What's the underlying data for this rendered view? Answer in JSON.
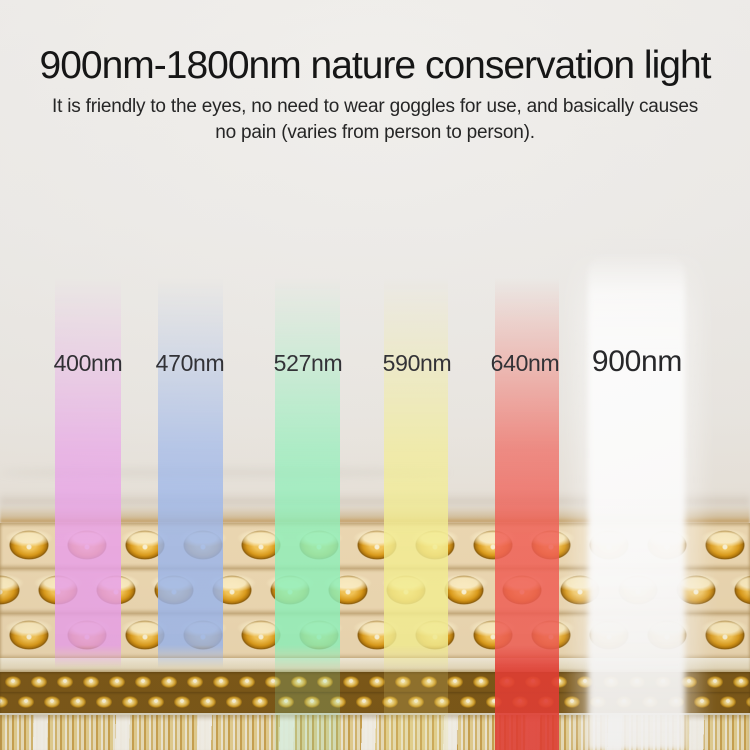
{
  "page": {
    "type": "product-marketing-graphic",
    "background_hex": "#edebe8"
  },
  "header": {
    "title": "900nm-1800nm nature conservation light",
    "subtitle_line1": "It is friendly to the eyes, no need to wear goggles for use, and basically causes",
    "subtitle_line2": "no pain (varies from person to person)."
  },
  "spectrum": {
    "bars": [
      {
        "label": "400nm",
        "color_hex": "#eda2ee",
        "reaches_bottom": false
      },
      {
        "label": "470nm",
        "color_hex": "#9cb8f0",
        "reaches_bottom": false
      },
      {
        "label": "527nm",
        "color_hex": "#8ff4bc",
        "reaches_bottom": true
      },
      {
        "label": "590nm",
        "color_hex": "#f7f192",
        "reaches_bottom": true
      },
      {
        "label": "640nm",
        "color_hex": "#f45c53",
        "color_bottom_hex": "#e93a30",
        "reaches_bottom": true
      },
      {
        "label": "900nm",
        "color_hex": "#ffffff",
        "reaches_bottom": true
      }
    ]
  },
  "panel": {
    "bead_gold_hex": "#dd9b16",
    "bead_highlight_hex": "#fdf4d4",
    "base_cream_hex": "#eed9b2",
    "bristle_gold_hex": "#d9ba6e"
  }
}
